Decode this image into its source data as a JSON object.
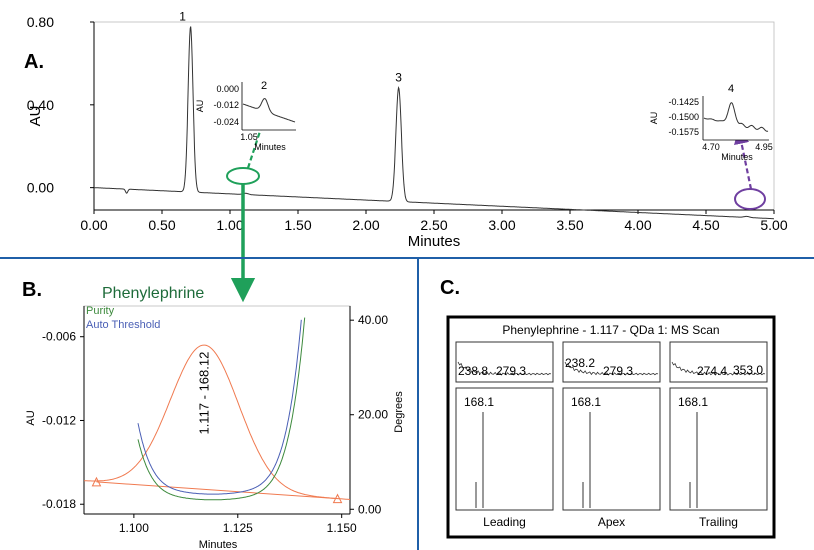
{
  "panels": {
    "a": "A.",
    "b": "B.",
    "c": "C."
  },
  "colors": {
    "divider": "#1f5fa8",
    "green_arrow": "#1fa05a",
    "purple_arrow": "#6f3fa0",
    "purity": "#3d8a3d",
    "threshold": "#4a5fb5",
    "spectrum": "#f07a50",
    "title_green": "#1e6b3a"
  },
  "chart_data": [
    {
      "id": "main",
      "type": "line",
      "xlabel": "Minutes",
      "ylabel": "AU",
      "xlim": [
        0.0,
        5.0
      ],
      "ylim": [
        -0.15,
        0.8
      ],
      "xticks": [
        "0.00",
        "0.50",
        "1.00",
        "1.50",
        "2.00",
        "2.50",
        "3.00",
        "3.50",
        "4.00",
        "4.50",
        "5.00"
      ],
      "yticks": [
        "0.00",
        "0.40",
        "0.80"
      ],
      "baseline": [
        [
          0.0,
          0.0
        ],
        [
          5.0,
          -0.15
        ]
      ],
      "dip": {
        "x": 0.24,
        "y": -0.02
      },
      "peaks": [
        {
          "label": "1",
          "x": 0.71,
          "height": 0.8,
          "width": 0.018
        },
        {
          "label": "2",
          "x": 1.117,
          "height": 0.006,
          "width": 0.02
        },
        {
          "label": "3",
          "x": 2.24,
          "height": 0.55,
          "width": 0.02
        },
        {
          "label": "4",
          "x": 4.8,
          "height": 0.005,
          "width": 0.02
        }
      ]
    },
    {
      "id": "inset2",
      "type": "line",
      "xlabel": "Minutes",
      "ylabel": "AU",
      "peak_label": "2",
      "xlim": [
        1.05,
        1.2
      ],
      "ylim": [
        -0.026,
        0.004
      ],
      "xticks": [
        "1.05"
      ],
      "yticks": [
        "0.000",
        "-0.012",
        "-0.024"
      ]
    },
    {
      "id": "inset4",
      "type": "line",
      "xlabel": "Minutes",
      "ylabel": "AU",
      "peak_label": "4",
      "xlim": [
        4.7,
        4.95
      ],
      "ylim": [
        -0.16,
        -0.14
      ],
      "xticks": [
        "4.70",
        "4.95"
      ],
      "yticks": [
        "-0.1425",
        "-0.1500",
        "-0.1575"
      ]
    },
    {
      "id": "purity",
      "type": "line",
      "title": "Phenylephrine",
      "xlabel": "Minutes",
      "ylabel": "AU",
      "y2label": "Degrees",
      "xlim": [
        1.088,
        1.152
      ],
      "ylim": [
        -0.0187,
        -0.0038
      ],
      "y2lim": [
        -1.0,
        43.0
      ],
      "xticks": [
        "1.100",
        "1.125",
        "1.150"
      ],
      "yticks": [
        "-0.006",
        "-0.012",
        "-0.018"
      ],
      "y2ticks": [
        "40.00",
        "20.00",
        "0.00"
      ],
      "legend": [
        "Purity",
        "Auto Threshold"
      ],
      "peak_annotation": "1.117 - 168.12",
      "chromatogram": {
        "apex_x": 1.117,
        "apex_y": -0.0066,
        "start": [
          1.091,
          -0.0164
        ],
        "end": [
          1.149,
          -0.0176
        ]
      }
    }
  ],
  "ms_panel": {
    "title": "Phenylephrine - 1.117 - QDa 1: MS Scan",
    "columns": [
      {
        "label": "Leading",
        "top_labels": [
          "238.8",
          "279.3"
        ],
        "base_peak": "168.1"
      },
      {
        "label": "Apex",
        "top_labels": [
          "238.2",
          "279.3"
        ],
        "base_peak": "168.1"
      },
      {
        "label": "Trailing",
        "top_labels": [
          "274.4",
          "353.0"
        ],
        "base_peak": "168.1"
      }
    ]
  }
}
